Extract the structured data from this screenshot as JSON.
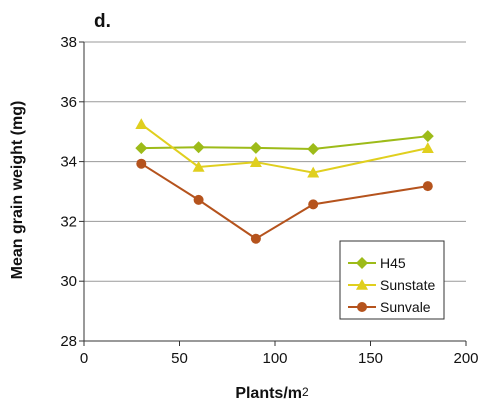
{
  "chart_data": {
    "type": "line",
    "panel_label": "d.",
    "xlabel_main": "Plants/m",
    "xlabel_sup": "2",
    "ylabel": "Mean grain weight (mg)",
    "xlim": [
      0,
      200
    ],
    "ylim": [
      28,
      38
    ],
    "xticks": [
      0,
      50,
      100,
      150,
      200
    ],
    "yticks": [
      28,
      30,
      32,
      34,
      36,
      38
    ],
    "grid": "horizontal",
    "legend_position": "bottom-right",
    "series": [
      {
        "name": "H45",
        "marker": "diamond",
        "color": "#9DBB19",
        "x": [
          30,
          60,
          90,
          120,
          180
        ],
        "y": [
          34.45,
          34.48,
          34.46,
          34.42,
          34.85
        ]
      },
      {
        "name": "Sunstate",
        "marker": "triangle",
        "color": "#E0CF1E",
        "x": [
          30,
          60,
          90,
          120,
          180
        ],
        "y": [
          35.25,
          33.82,
          33.98,
          33.63,
          34.45
        ]
      },
      {
        "name": "Sunvale",
        "marker": "circle",
        "color": "#B5531D",
        "x": [
          30,
          60,
          90,
          120,
          180
        ],
        "y": [
          33.93,
          32.72,
          31.42,
          32.57,
          33.18
        ]
      }
    ]
  }
}
